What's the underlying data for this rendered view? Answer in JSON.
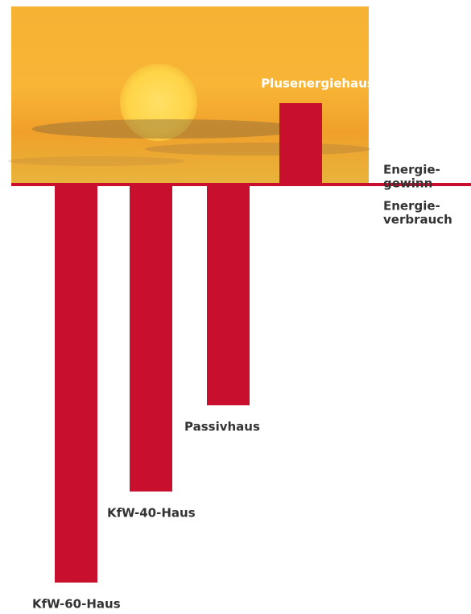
{
  "chart_data": {
    "type": "bar",
    "categories": [
      "KfW-60-Haus",
      "KfW-40-Haus",
      "Passivhaus",
      "Plusenergiehaus®"
    ],
    "values": [
      -494,
      -381,
      -274,
      101
    ],
    "color": "#c8102e",
    "ylim": [
      -500,
      221
    ],
    "annotations": [
      [
        "Energie-",
        "gewinn"
      ],
      [
        "Energie-",
        "verbrauch"
      ]
    ]
  }
}
